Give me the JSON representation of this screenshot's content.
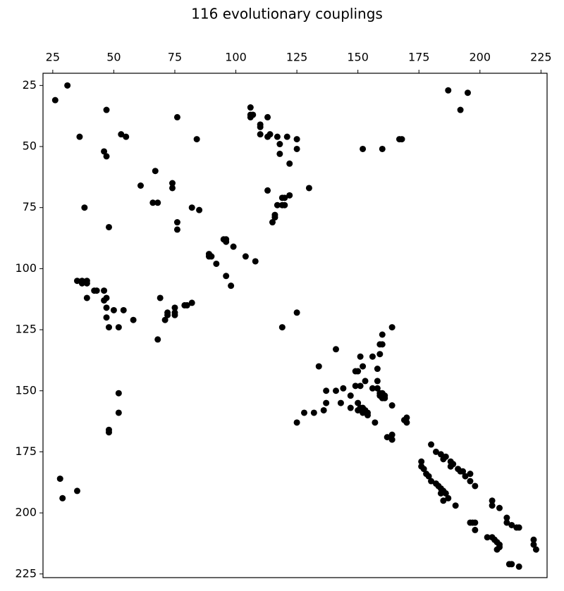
{
  "chart_data": {
    "type": "scatter",
    "title": "116 evolutionary couplings",
    "color": "#000000",
    "x": [
      31,
      26,
      47,
      36,
      76,
      53,
      55,
      84,
      46,
      47,
      67,
      61,
      74,
      74,
      66,
      68,
      38,
      82,
      85,
      76,
      76,
      48,
      106,
      106,
      107,
      106,
      113,
      110,
      110,
      110,
      113,
      114,
      117,
      121,
      125,
      125,
      118,
      118,
      122,
      113,
      130,
      119,
      120,
      122,
      117,
      119,
      120,
      116,
      116,
      115,
      95,
      96,
      96,
      89,
      89,
      90,
      92,
      99,
      104,
      108,
      96,
      98,
      152,
      160,
      167,
      168,
      187,
      195,
      192,
      35,
      37,
      39,
      37,
      39,
      42,
      43,
      46,
      39,
      46,
      47,
      47,
      50,
      54,
      58,
      47,
      48,
      52,
      69,
      72,
      72,
      71,
      75,
      75,
      75,
      79,
      80,
      82,
      68,
      125,
      119,
      52,
      52,
      48,
      48,
      28,
      29,
      35,
      164,
      160,
      159,
      160,
      141,
      159,
      156,
      151,
      134,
      152,
      158,
      149,
      150,
      153,
      158,
      149,
      151,
      158,
      156,
      137,
      141,
      144,
      159,
      160,
      159,
      161,
      160,
      161,
      147,
      137,
      143,
      164,
      150,
      147,
      151,
      152,
      150,
      153,
      154,
      152,
      154,
      136,
      132,
      128,
      157,
      125,
      170,
      170,
      169,
      162,
      164,
      164,
      180,
      182,
      184,
      186,
      185,
      188,
      189,
      188,
      191,
      192,
      193,
      194,
      196,
      196,
      198,
      176,
      176,
      177,
      178,
      179,
      180,
      182,
      183,
      184,
      185,
      186,
      187,
      184,
      185,
      190,
      205,
      205,
      208,
      211,
      211,
      213,
      215,
      216,
      196,
      197,
      198,
      198,
      203,
      205,
      206,
      207,
      208,
      207,
      208,
      212,
      213,
      216,
      222,
      222,
      223
    ],
    "y": [
      25,
      31,
      35,
      46,
      38,
      45,
      46,
      47,
      52,
      54,
      60,
      66,
      65,
      67,
      73,
      73,
      75,
      75,
      76,
      81,
      84,
      83,
      34,
      37,
      37,
      38,
      38,
      41,
      42,
      45,
      46,
      45,
      46,
      46,
      47,
      51,
      49,
      53,
      57,
      68,
      67,
      71,
      71,
      70,
      74,
      74,
      74,
      78,
      79,
      81,
      88,
      88,
      89,
      94,
      95,
      95,
      98,
      91,
      95,
      97,
      103,
      107,
      51,
      51,
      47,
      47,
      27,
      28,
      35,
      105,
      105,
      105,
      106,
      106,
      109,
      109,
      109,
      112,
      113,
      112,
      116,
      117,
      117,
      121,
      120,
      124,
      124,
      112,
      118,
      119,
      121,
      116,
      118,
      119,
      115,
      115,
      114,
      129,
      118,
      124,
      151,
      159,
      166,
      167,
      186,
      194,
      191,
      124,
      127,
      131,
      131,
      133,
      135,
      136,
      136,
      140,
      140,
      141,
      142,
      142,
      146,
      146,
      148,
      148,
      149,
      149,
      150,
      150,
      149,
      151,
      151,
      152,
      152,
      153,
      153,
      152,
      155,
      155,
      156,
      155,
      157,
      157,
      157,
      158,
      158,
      159,
      159,
      160,
      158,
      159,
      159,
      163,
      163,
      161,
      163,
      162,
      169,
      168,
      170,
      172,
      175,
      176,
      177,
      178,
      179,
      180,
      181,
      182,
      183,
      183,
      185,
      184,
      187,
      189,
      179,
      181,
      182,
      184,
      185,
      187,
      188,
      189,
      190,
      191,
      192,
      194,
      192,
      195,
      197,
      195,
      197,
      198,
      202,
      204,
      205,
      206,
      206,
      204,
      204,
      204,
      207,
      210,
      210,
      211,
      212,
      213,
      215,
      214,
      221,
      221,
      222,
      211,
      213,
      215
    ],
    "xlim": [
      21,
      227.5
    ],
    "ylim": [
      226.5,
      20
    ],
    "xticks": [
      25,
      50,
      75,
      100,
      125,
      150,
      175,
      200,
      225
    ],
    "yticks": [
      25,
      50,
      75,
      100,
      125,
      150,
      175,
      200,
      225
    ]
  }
}
